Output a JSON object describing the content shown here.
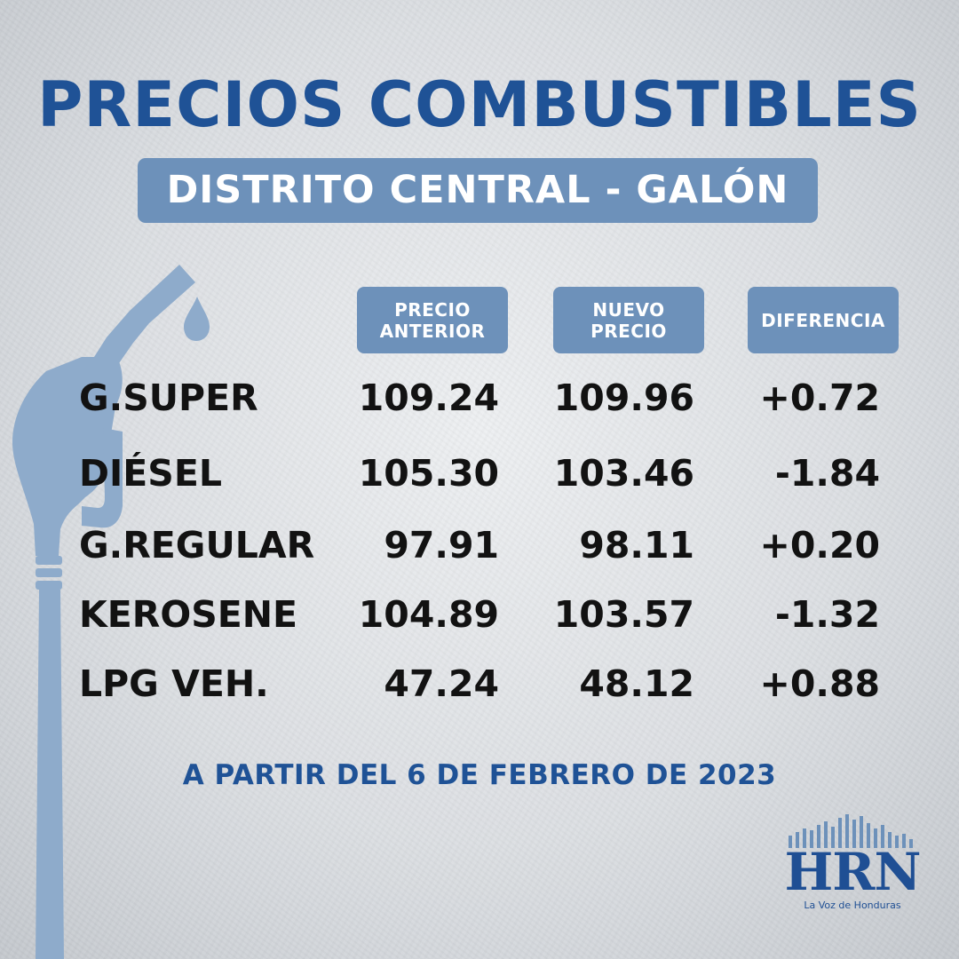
{
  "title": "PRECIOS COMBUSTIBLES",
  "subtitle": "DISTRITO CENTRAL - GALÓN",
  "headers": {
    "previous": "PRECIO\nANTERIOR",
    "new": "NUEVO\nPRECIO",
    "difference": "DIFERENCIA"
  },
  "rows": [
    {
      "fuel": "G.SUPER",
      "previous": "109.24",
      "new": "109.96",
      "difference": "+0.72"
    },
    {
      "fuel": "DIÉSEL",
      "previous": "105.30",
      "new": "103.46",
      "difference": "-1.84"
    },
    {
      "fuel": "G.REGULAR",
      "previous": "97.91",
      "new": "98.11",
      "difference": "+0.20"
    },
    {
      "fuel": "KEROSENE",
      "previous": "104.89",
      "new": "103.57",
      "difference": "-1.32"
    },
    {
      "fuel": "LPG VEH.",
      "previous": "47.24",
      "new": "48.12",
      "difference": "+0.88"
    }
  ],
  "footer": "A PARTIR DEL 6 DE FEBRERO DE 2023",
  "logo": {
    "name": "HRN",
    "tagline": "La Voz de Honduras"
  },
  "colors": {
    "accent": "#1f5296",
    "box": "#6d91ba",
    "nozzle": "#8eabcb"
  },
  "icons": {
    "decoration": "fuel-nozzle-icon",
    "drop": "fuel-drop-icon"
  }
}
